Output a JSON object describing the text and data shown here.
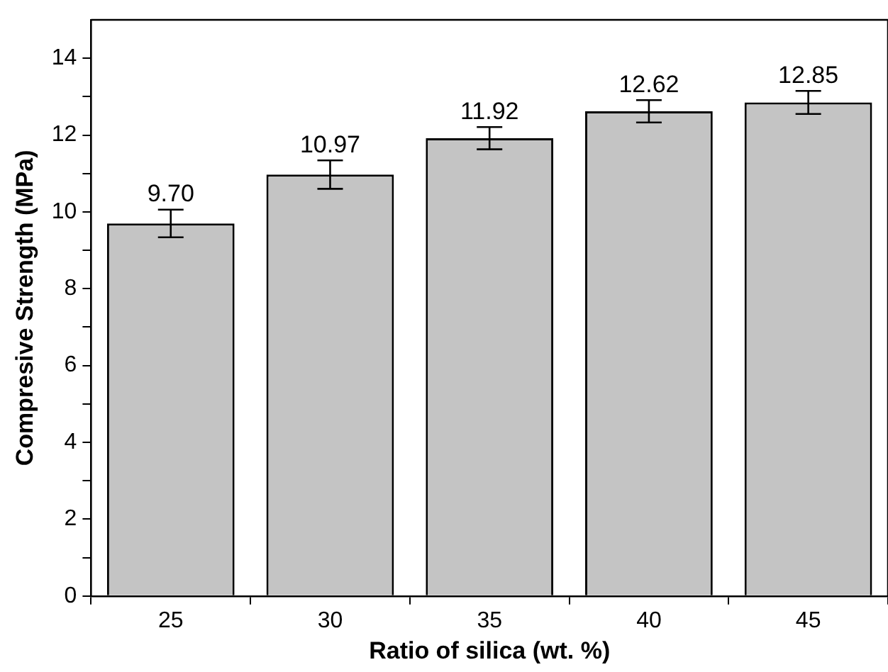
{
  "chart_data": {
    "type": "bar",
    "xlabel": "Ratio of silica (wt. %)",
    "ylabel": "Compresive Strength (MPa)",
    "categories": [
      "25",
      "30",
      "35",
      "40",
      "45"
    ],
    "values": [
      9.7,
      10.97,
      11.92,
      12.62,
      12.85
    ],
    "errors": [
      0.36,
      0.37,
      0.29,
      0.29,
      0.3
    ],
    "color": "#c4c4c4",
    "value_labels": [
      "9.70",
      "10.97",
      "11.92",
      "12.62",
      "12.85"
    ],
    "ylim": [
      0,
      15
    ],
    "yticks": [
      0,
      {
        "value": 1,
        "label": null
      },
      2,
      {
        "value": 3,
        "label": null
      },
      4,
      {
        "value": 5,
        "label": null
      },
      6,
      {
        "value": 7,
        "label": null
      },
      8,
      {
        "value": 9,
        "label": null
      },
      10,
      {
        "value": 11,
        "label": null
      },
      12,
      {
        "value": 13,
        "label": null
      },
      14
    ],
    "grid": false,
    "legend": false
  }
}
